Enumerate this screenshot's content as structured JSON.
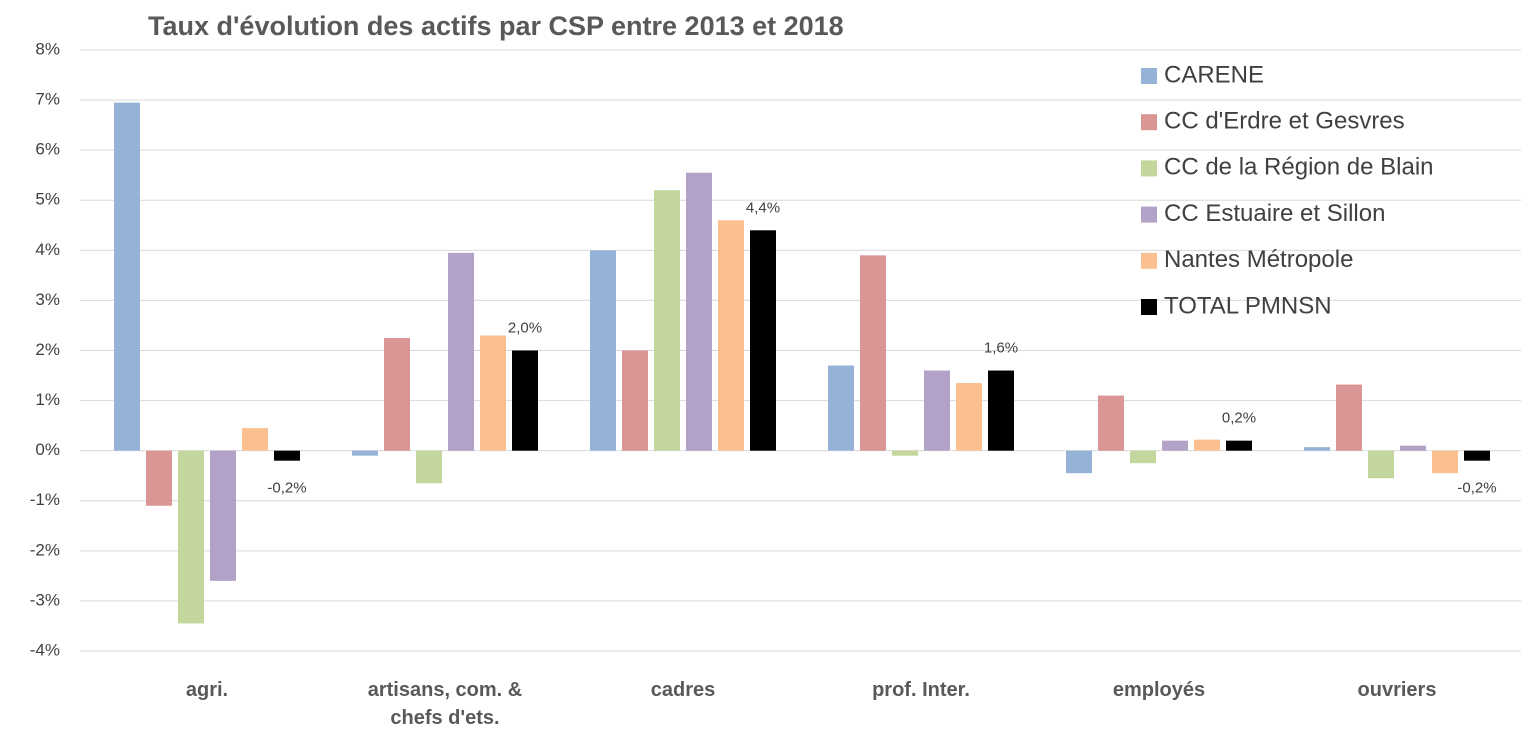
{
  "chart_data": {
    "type": "bar",
    "title": "Taux d'évolution des actifs par CSP entre 2013 et 2018",
    "categories": [
      "agri.",
      "artisans, com. & chefs d'ets.",
      "cadres",
      "prof. Inter.",
      "employés",
      "ouvriers"
    ],
    "series": [
      {
        "name": "CARENE",
        "color": "#95b3d7",
        "values": [
          6.95,
          -0.1,
          4.0,
          1.7,
          -0.45,
          0.07
        ]
      },
      {
        "name": "CC d'Erdre et Gesvres",
        "color": "#d99694",
        "values": [
          -1.1,
          2.25,
          2.0,
          3.9,
          1.1,
          1.32
        ]
      },
      {
        "name": "CC de la Région de Blain",
        "color": "#c3d69b",
        "values": [
          -3.45,
          -0.65,
          5.2,
          -0.1,
          -0.25,
          -0.55
        ]
      },
      {
        "name": "CC Estuaire et Sillon",
        "color": "#b3a2c7",
        "values": [
          -2.6,
          3.95,
          5.55,
          1.6,
          0.2,
          0.1
        ]
      },
      {
        "name": "Nantes Métropole",
        "color": "#fac090",
        "values": [
          0.45,
          2.3,
          4.6,
          1.35,
          0.22,
          -0.45
        ]
      },
      {
        "name": "TOTAL PMNSN",
        "color": "#000000",
        "values": [
          -0.2,
          2.0,
          4.4,
          1.6,
          0.2,
          -0.2
        ],
        "value_labels": [
          "-0,2%",
          "2,0%",
          "4,4%",
          "1,6%",
          "0,2%",
          "-0,2%"
        ]
      }
    ],
    "ylim": [
      -4,
      8
    ],
    "yticks": [
      {
        "value": -4,
        "label": "-4%"
      },
      {
        "value": -3,
        "label": "-3%"
      },
      {
        "value": -2,
        "label": "-2%"
      },
      {
        "value": -1,
        "label": "-1%"
      },
      {
        "value": 0,
        "label": "0%"
      },
      {
        "value": 1,
        "label": "1%"
      },
      {
        "value": 2,
        "label": "2%"
      },
      {
        "value": 3,
        "label": "3%"
      },
      {
        "value": 4,
        "label": "4%"
      },
      {
        "value": 5,
        "label": "5%"
      },
      {
        "value": 6,
        "label": "6%"
      },
      {
        "value": 7,
        "label": "7%"
      },
      {
        "value": 8,
        "label": "8%"
      }
    ],
    "grid": true,
    "legend": "top-right"
  }
}
